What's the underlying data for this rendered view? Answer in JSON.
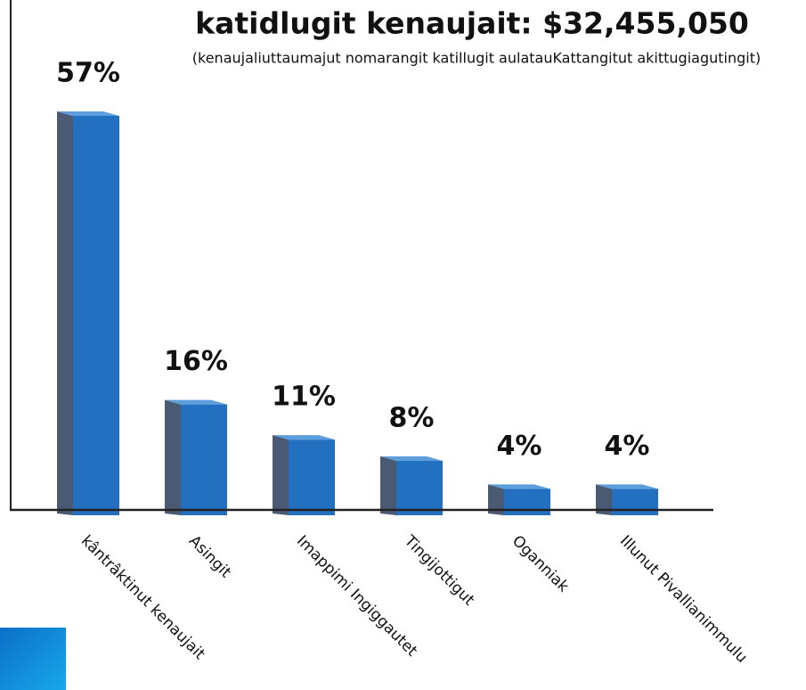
{
  "chart_data": {
    "type": "bar",
    "title": "katidlugit kenaujait: $32,455,050",
    "subtitle": "(kenaujaliuttaumajut nomarangit katillugit aulatauKattangitut akittugiagutingit)",
    "categories": [
      "kântrâktinut kenaujait",
      "Asingit",
      "Imappimi Ingiggautet",
      "Tingijottigut",
      "Oganniak",
      "Illunut Pivallianimmulu"
    ],
    "values": [
      57,
      16,
      11,
      8,
      4,
      4
    ],
    "value_labels": [
      "57%",
      "16%",
      "11%",
      "8%",
      "4%",
      "4%"
    ],
    "color": "#2470c0"
  }
}
